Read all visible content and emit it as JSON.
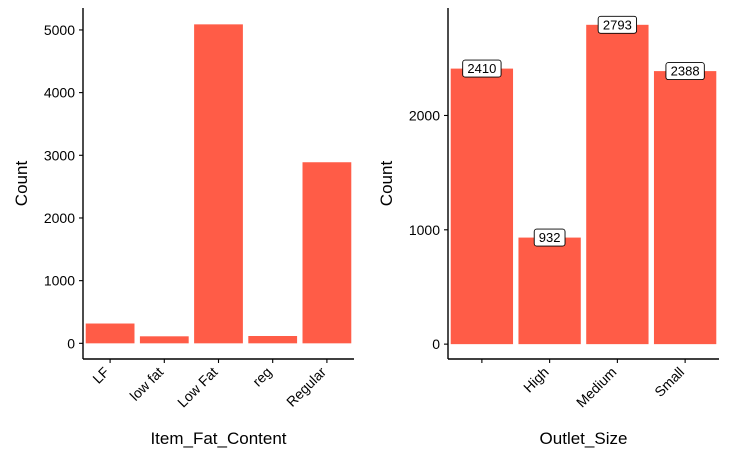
{
  "chart_data": [
    {
      "type": "bar",
      "categories": [
        "LF",
        "low fat",
        "Low Fat",
        "reg",
        "Regular"
      ],
      "values": [
        316,
        112,
        5089,
        117,
        2889
      ],
      "xlabel": "Item_Fat_Content",
      "ylabel": "Count",
      "ylim": [
        -250,
        5350
      ],
      "yticks": [
        0,
        1000,
        2000,
        3000,
        4000,
        5000
      ],
      "grid": false,
      "bar_color": "#FF5C47",
      "show_value_labels": false
    },
    {
      "type": "bar",
      "categories": [
        "",
        "High",
        "Medium",
        "Small"
      ],
      "values": [
        2410,
        932,
        2793,
        2388
      ],
      "value_labels": [
        "2410",
        "932",
        "2793",
        "2388"
      ],
      "xlabel": "Outlet_Size",
      "ylabel": "Count",
      "ylim": [
        -130,
        2940
      ],
      "yticks": [
        0,
        1000,
        2000
      ],
      "grid": false,
      "bar_color": "#FF5C47",
      "show_value_labels": true
    }
  ]
}
